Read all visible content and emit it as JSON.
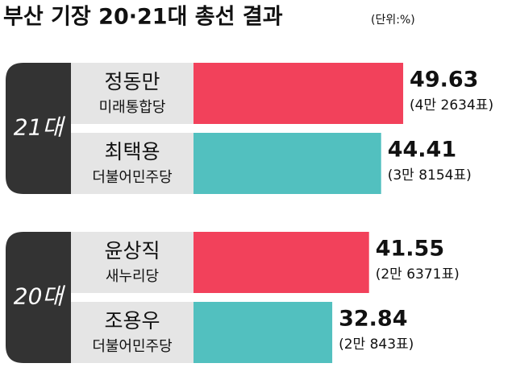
{
  "chart_data": {
    "type": "bar",
    "title": "부산 기장 20·21대 총선 결과",
    "unit": "(단위:%)",
    "groups": [
      {
        "name": "21대",
        "candidates": [
          {
            "name": "정동만",
            "party": "미래통합당",
            "value": 49.63,
            "votes": "(4만 2634표)",
            "color": "#f2415b"
          },
          {
            "name": "최택용",
            "party": "더불어민주당",
            "value": 44.41,
            "votes": "(3만 8154표)",
            "color": "#52c0bf"
          }
        ]
      },
      {
        "name": "20대",
        "candidates": [
          {
            "name": "윤상직",
            "party": "새누리당",
            "value": 41.55,
            "votes": "(2만 6371표)",
            "color": "#f2415b"
          },
          {
            "name": "조용우",
            "party": "더불어민주당",
            "value": 32.84,
            "votes": "(2만 843표)",
            "color": "#52c0bf"
          }
        ]
      }
    ]
  }
}
